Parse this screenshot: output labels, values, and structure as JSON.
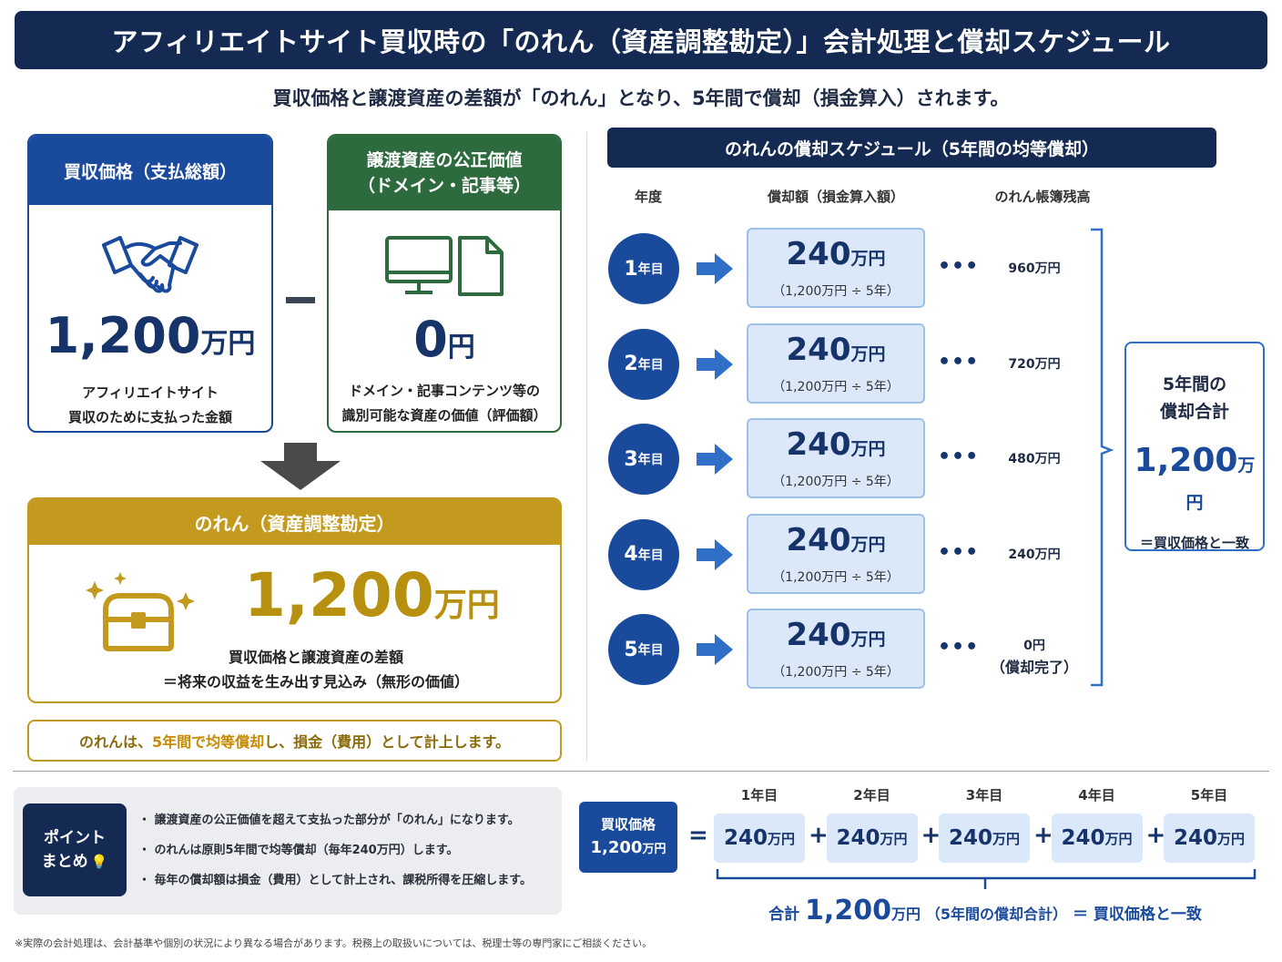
{
  "title": "アフィリエイトサイト買収時の「のれん（資産調整勘定）」会計処理と償却スケジュール",
  "subtitle": "買収価格と譲渡資産の差額が「のれん」となり、5年間で償却（損金算入）されます。",
  "purchase_card": {
    "heading": "買収価格（支払総額）",
    "icon": "handshake-icon",
    "value": "1,200",
    "unit": "万円",
    "desc_line1": "アフィリエイトサイト",
    "desc_line2": "買収のために支払った金額"
  },
  "assets_card": {
    "heading_line1": "譲渡資産の公正価値",
    "heading_line2": "（ドメイン・記事等）",
    "icon": "monitor-document-icon",
    "value": "0",
    "unit": "円",
    "desc_line1": "ドメイン・記事コンテンツ等の",
    "desc_line2": "識別可能な資産の価値（評価額）"
  },
  "goodwill_card": {
    "heading": "のれん（資産調整勘定）",
    "icon": "treasure-chest-icon",
    "value": "1,200",
    "unit": "万円",
    "desc_line1": "買収価格と譲渡資産の差額",
    "desc_line2": "＝将来の収益を生み出す見込み（無形の価値）"
  },
  "goodwill_note": {
    "part1": "のれんは、",
    "highlight": "5年間で均等償却",
    "part2": "し、損金（費用）として計上します。"
  },
  "schedule": {
    "heading": "のれんの償却スケジュール（5年間の均等償却）",
    "col_year": "年度",
    "col_amount": "償却額（損金算入額）",
    "col_balance": "のれん帳簿残高",
    "dots": "•••",
    "rows": [
      {
        "year_num": "1",
        "year_suffix": "年目",
        "amount": "240",
        "amount_unit": "万円",
        "formula": "（1,200万円 ÷ 5年）",
        "balance": "960",
        "balance_unit": "万円",
        "balance_note": ""
      },
      {
        "year_num": "2",
        "year_suffix": "年目",
        "amount": "240",
        "amount_unit": "万円",
        "formula": "（1,200万円 ÷ 5年）",
        "balance": "720",
        "balance_unit": "万円",
        "balance_note": ""
      },
      {
        "year_num": "3",
        "year_suffix": "年目",
        "amount": "240",
        "amount_unit": "万円",
        "formula": "（1,200万円 ÷ 5年）",
        "balance": "480",
        "balance_unit": "万円",
        "balance_note": ""
      },
      {
        "year_num": "4",
        "year_suffix": "年目",
        "amount": "240",
        "amount_unit": "万円",
        "formula": "（1,200万円 ÷ 5年）",
        "balance": "240",
        "balance_unit": "万円",
        "balance_note": ""
      },
      {
        "year_num": "5",
        "year_suffix": "年目",
        "amount": "240",
        "amount_unit": "万円",
        "formula": "（1,200万円 ÷ 5年）",
        "balance": "0",
        "balance_unit": "円",
        "balance_note": "（償却完了）"
      }
    ],
    "total": {
      "line1": "5年間の",
      "line2": "償却合計",
      "value": "1,200",
      "unit": "万円",
      "note": "＝買収価格と一致"
    }
  },
  "points": {
    "badge_line1": "ポイント",
    "badge_line2": "まとめ",
    "icon": "lightbulb-icon",
    "items": [
      "・ 譲渡資産の公正価値を超えて支払った部分が「のれん」になります。",
      "・ のれんは原則5年間で均等償却（毎年240万円）します。",
      "・ 毎年の償却額は損金（費用）として計上され、課税所得を圧縮します。"
    ]
  },
  "equation": {
    "buy_label": "買収価格",
    "buy_value": "1,200",
    "buy_unit": "万円",
    "equals": "=",
    "plus": "+",
    "years": [
      "1年目",
      "2年目",
      "3年目",
      "4年目",
      "5年目"
    ],
    "amount": "240",
    "amount_unit": "万円",
    "sum_prefix": "合計",
    "sum_value": "1,200",
    "sum_unit": "万円",
    "sum_paren": "（5年間の償却合計）",
    "sum_suffix": "＝ 買収価格と一致"
  },
  "footnote": "※実際の会計処理は、会計基準や個別の状況により異なる場合があります。税務上の取扱いについては、税理士等の専門家にご相談ください。",
  "colors": {
    "navy": "#142a52",
    "blue": "#1a4a9c",
    "green": "#2d6a3e",
    "gold": "#c39a1e",
    "light_blue": "#dae8fa"
  }
}
